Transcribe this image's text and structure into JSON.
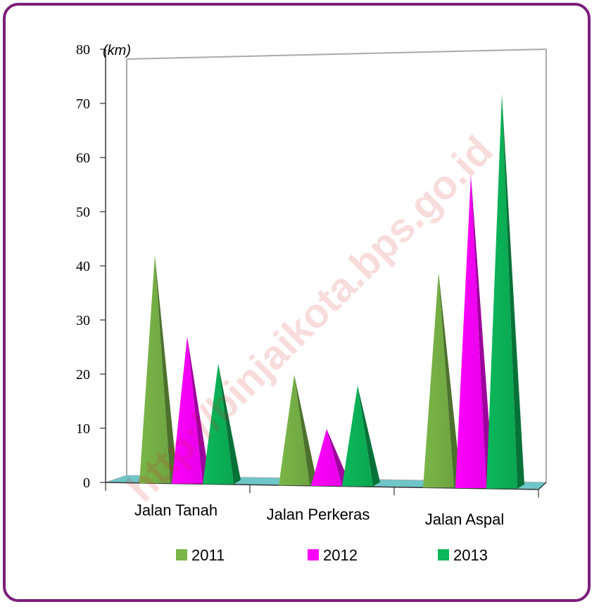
{
  "chart_data": {
    "type": "bar",
    "style": "3d-pyramid",
    "unit_label": "(km)",
    "categories": [
      "Jalan Tanah",
      "Jalan Perkeras",
      "Jalan Aspal"
    ],
    "series": [
      {
        "name": "2011",
        "color": "#7ab648",
        "values": [
          42,
          20,
          39
        ]
      },
      {
        "name": "2012",
        "color": "#ff00ff",
        "values": [
          27,
          10,
          57
        ]
      },
      {
        "name": "2013",
        "color": "#0bb85a",
        "values": [
          22,
          18,
          72
        ]
      }
    ],
    "ylim": [
      0,
      80
    ],
    "yticks": [
      0,
      10,
      20,
      30,
      40,
      50,
      60,
      70,
      80
    ],
    "legend_position": "bottom",
    "grid": false
  },
  "watermark": "http://binjaikota.bps.go.id",
  "frame_color": "#7b1e7a",
  "floor_color": "#6ec6c9"
}
